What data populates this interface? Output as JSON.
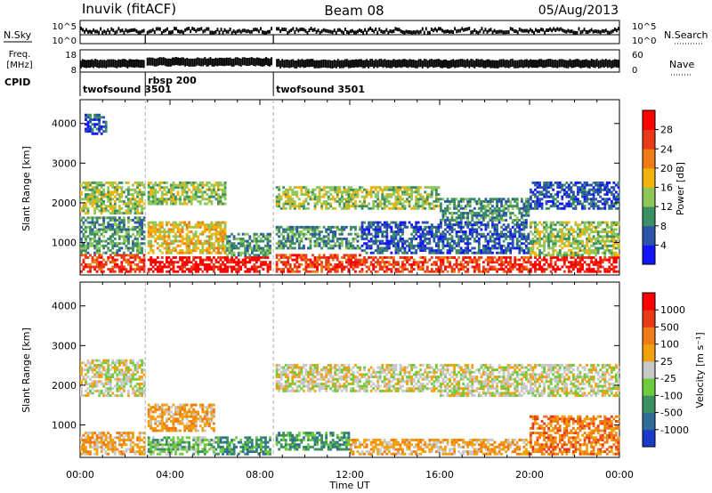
{
  "header": {
    "station": "Inuvik (fitACF)",
    "beam": "Beam 08",
    "date": "05/Aug/2013"
  },
  "strips": {
    "nsky_label": "N.Sky",
    "nsky_ticks": [
      "10^5",
      "10^0"
    ],
    "nsearch_label": "N.Search",
    "nsearch_ticks": [
      "10^5",
      "10^0"
    ],
    "freq_label_1": "Freq.",
    "freq_label_2": "[MHz]",
    "freq_ticks": [
      "18",
      "8"
    ],
    "nave_label": "Nave",
    "nave_ticks": [
      "60",
      "0"
    ],
    "cpid_label": "CPID",
    "cpid_segments": [
      {
        "label": "twofsound 3501",
        "start_h": 0.0,
        "end_h": 2.9
      },
      {
        "label": "rbsp 200",
        "start_h": 2.9,
        "end_h": 8.6
      },
      {
        "label": "twofsound 3501",
        "start_h": 8.6,
        "end_h": 24.0
      }
    ]
  },
  "chart_data": [
    {
      "type": "heatmap",
      "ylabel": "Slant Range [km]",
      "yticks": [
        "1000",
        "2000",
        "3000",
        "4000"
      ],
      "ylim": [
        180,
        4600
      ],
      "xlim": [
        0,
        24
      ],
      "colorbar_label": "Power [dB]",
      "colorbar_ticks": [
        "4",
        "8",
        "12",
        "16",
        "20",
        "24",
        "28"
      ],
      "colorbar_colors": [
        "#1414ff",
        "#2c55a8",
        "#3c8f62",
        "#8fc65a",
        "#f2b40c",
        "#f07a14",
        "#e83a18",
        "#ff0000"
      ],
      "regions": [
        {
          "t0": 0.0,
          "t1": 2.9,
          "r0": 200,
          "r1": 700,
          "level": 6
        },
        {
          "t0": 0.0,
          "t1": 2.9,
          "r0": 700,
          "r1": 1600,
          "level": 2
        },
        {
          "t0": 0.0,
          "t1": 2.9,
          "r0": 1700,
          "r1": 2500,
          "level": 3
        },
        {
          "t0": 3.0,
          "t1": 8.5,
          "r0": 200,
          "r1": 600,
          "level": 7
        },
        {
          "t0": 3.0,
          "t1": 6.5,
          "r0": 700,
          "r1": 1500,
          "level": 4
        },
        {
          "t0": 3.0,
          "t1": 6.5,
          "r0": 1900,
          "r1": 2500,
          "level": 3
        },
        {
          "t0": 6.5,
          "t1": 8.5,
          "r0": 600,
          "r1": 1200,
          "level": 2
        },
        {
          "t0": 8.7,
          "t1": 12.5,
          "r0": 200,
          "r1": 700,
          "level": 6
        },
        {
          "t0": 8.7,
          "t1": 12.5,
          "r0": 800,
          "r1": 1400,
          "level": 2
        },
        {
          "t0": 8.7,
          "t1": 16.0,
          "r0": 1800,
          "r1": 2400,
          "level": 3
        },
        {
          "t0": 12.5,
          "t1": 20.0,
          "r0": 200,
          "r1": 600,
          "level": 6
        },
        {
          "t0": 12.5,
          "t1": 20.0,
          "r0": 700,
          "r1": 1500,
          "level": 1
        },
        {
          "t0": 16.0,
          "t1": 20.0,
          "r0": 1500,
          "r1": 2100,
          "level": 2
        },
        {
          "t0": 20.0,
          "t1": 24.0,
          "r0": 200,
          "r1": 600,
          "level": 7
        },
        {
          "t0": 20.0,
          "t1": 24.0,
          "r0": 600,
          "r1": 1500,
          "level": 3
        },
        {
          "t0": 20.0,
          "t1": 24.0,
          "r0": 1800,
          "r1": 2500,
          "level": 1
        },
        {
          "t0": 0.2,
          "t1": 1.2,
          "r0": 3700,
          "r1": 4200,
          "level": 1
        }
      ]
    },
    {
      "type": "heatmap",
      "ylabel": "Slant Range [km]",
      "yticks": [
        "1000",
        "2000",
        "3000",
        "4000"
      ],
      "ylim": [
        180,
        4600
      ],
      "xlim": [
        0,
        24
      ],
      "xlabel": "Time UT",
      "xticks": [
        "00:00",
        "04:00",
        "08:00",
        "12:00",
        "16:00",
        "20:00",
        "00:00"
      ],
      "colorbar_label": "Velocity [m s⁻¹]",
      "colorbar_ticks": [
        "1000",
        "500",
        "100",
        "25",
        "-25",
        "-100",
        "-500",
        "-1000"
      ],
      "colorbar_colors": [
        "#1a3cc8",
        "#2e6e96",
        "#3c8f62",
        "#6ccc3c",
        "#c8c8c8",
        "#f2a00c",
        "#f07a14",
        "#e83a18",
        "#ff0000"
      ],
      "regions": [
        {
          "t0": 0.0,
          "t1": 2.9,
          "r0": 200,
          "r1": 800,
          "level": 5
        },
        {
          "t0": 0.0,
          "t1": 2.9,
          "r0": 1700,
          "r1": 2600,
          "level": 4
        },
        {
          "t0": 3.0,
          "t1": 6.0,
          "r0": 200,
          "r1": 700,
          "level": 3
        },
        {
          "t0": 3.0,
          "t1": 6.0,
          "r0": 800,
          "r1": 1500,
          "level": 5
        },
        {
          "t0": 6.0,
          "t1": 8.5,
          "r0": 200,
          "r1": 700,
          "level": 2
        },
        {
          "t0": 8.7,
          "t1": 12.0,
          "r0": 300,
          "r1": 800,
          "level": 2
        },
        {
          "t0": 8.7,
          "t1": 16.0,
          "r0": 1800,
          "r1": 2500,
          "level": 4
        },
        {
          "t0": 12.0,
          "t1": 20.0,
          "r0": 200,
          "r1": 600,
          "level": 5
        },
        {
          "t0": 16.0,
          "t1": 24.0,
          "r0": 1700,
          "r1": 2500,
          "level": 4
        },
        {
          "t0": 20.0,
          "t1": 24.0,
          "r0": 200,
          "r1": 1200,
          "level": 6
        }
      ]
    }
  ]
}
